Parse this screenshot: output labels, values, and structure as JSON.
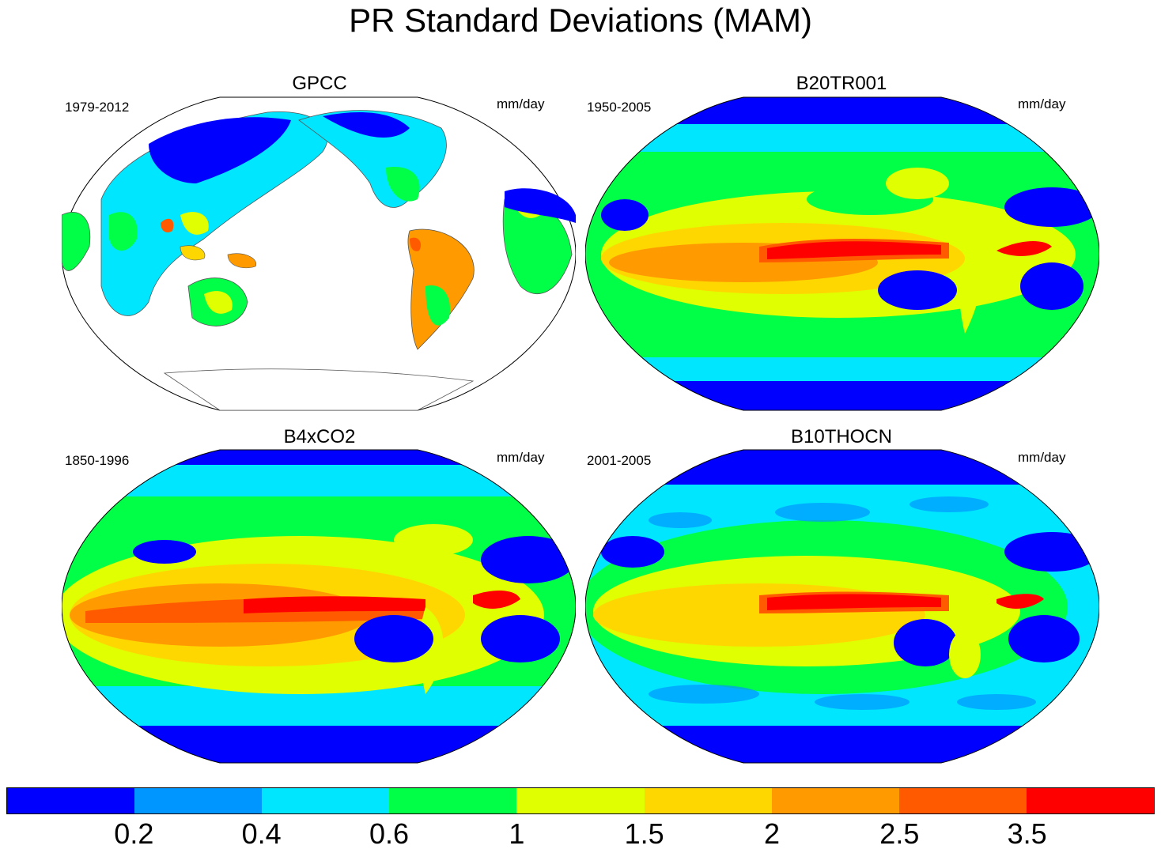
{
  "title": "PR Standard Deviations (MAM)",
  "panels": [
    {
      "name": "GPCC",
      "period": "1979-2012",
      "units": "mm/day",
      "type": "observed"
    },
    {
      "name": "B20TR001",
      "period": "1950-2005",
      "units": "mm/day",
      "type": "model"
    },
    {
      "name": "B4xCO2",
      "period": "1850-1996",
      "units": "mm/day",
      "type": "model-smooth"
    },
    {
      "name": "B10THOCN",
      "period": "2001-2005",
      "units": "mm/day",
      "type": "model-noisy"
    }
  ],
  "colorbar": {
    "colors": [
      "#0000ff",
      "#0096ff",
      "#00e6ff",
      "#00ff46",
      "#e0ff00",
      "#ffd700",
      "#ff9b00",
      "#ff5a00",
      "#ff0000"
    ],
    "labels": [
      "0.2",
      "0.4",
      "0.6",
      "1",
      "1.5",
      "2",
      "2.5",
      "3.5"
    ]
  }
}
